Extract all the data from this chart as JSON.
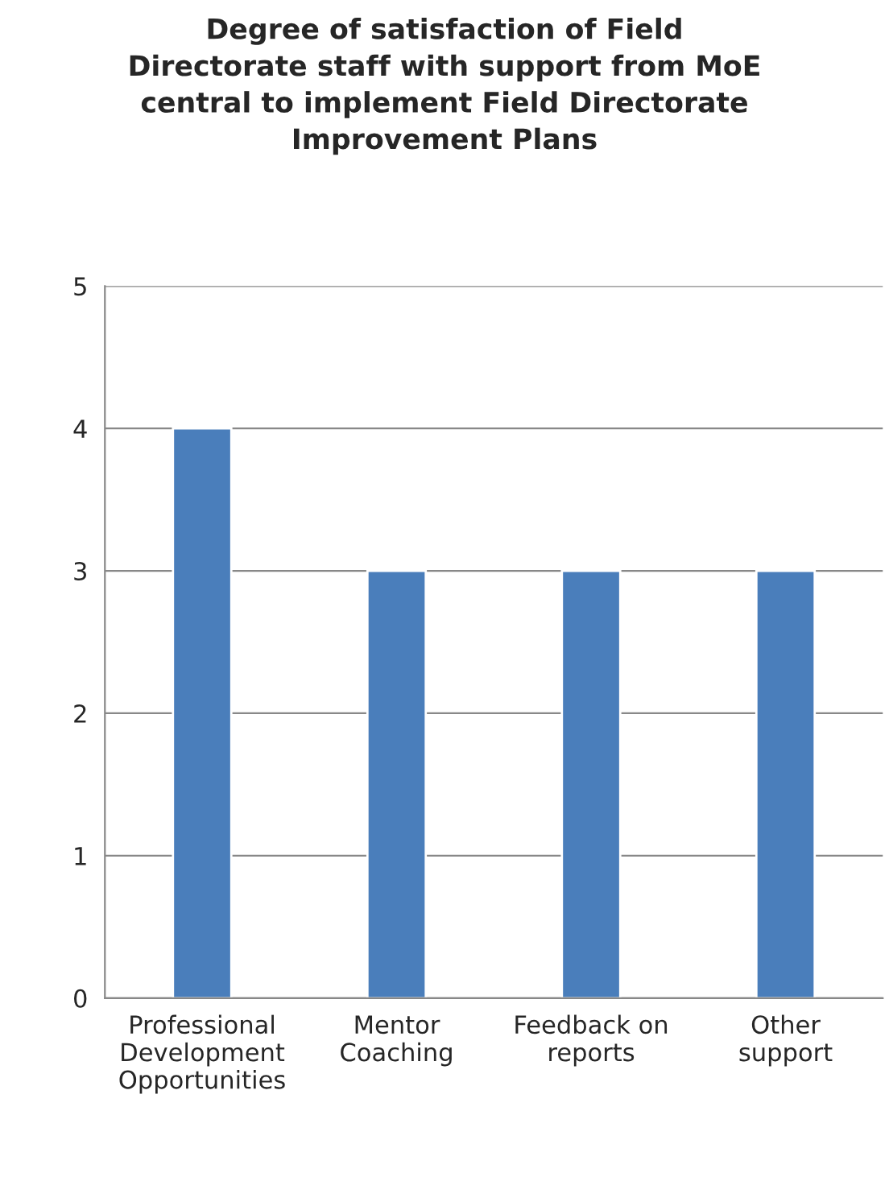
{
  "chart_data": {
    "type": "bar",
    "title": "Degree of satisfaction of Field\nDirectorate staff with support from MoE\ncentral to implement Field Directorate\nImprovement Plans",
    "categories": [
      "Professional\nDevelopment\nOpportunities",
      "Mentor\nCoaching",
      "Feedback on\nreports",
      "Other\nsupport"
    ],
    "values": [
      4,
      3,
      3,
      3
    ],
    "color": "#4a7ebb",
    "ylim": [
      0,
      5
    ],
    "yticks": [
      0,
      1,
      2,
      3,
      4,
      5
    ],
    "grid": "y"
  }
}
